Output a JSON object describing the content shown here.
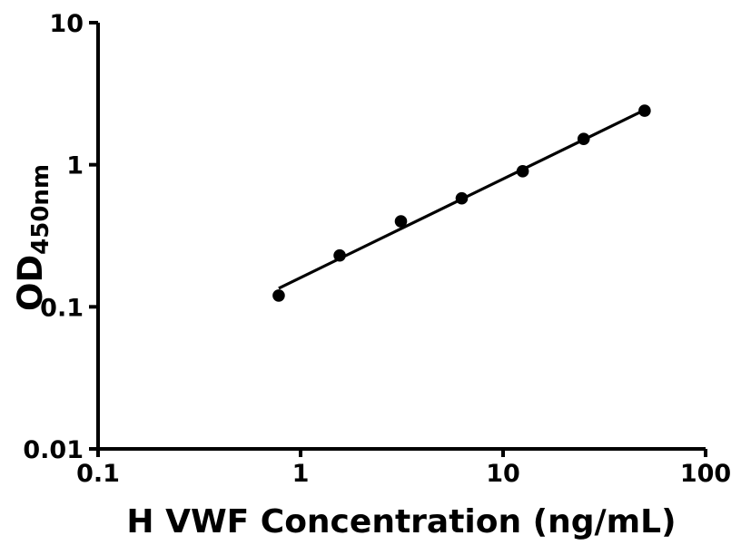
{
  "figure": {
    "background": "#ffffff",
    "foreground": "#000000"
  },
  "chart_data": {
    "type": "scatter",
    "title": "",
    "xlabel": "H VWF Concentration (ng/mL)",
    "ylabel": "OD450nm",
    "ylabel_main": "OD",
    "ylabel_sub": "450nm",
    "x_scale": "log",
    "y_scale": "log",
    "xlim": [
      0.1,
      100
    ],
    "ylim": [
      0.01,
      10
    ],
    "x_ticks": [
      0.1,
      1,
      10,
      100
    ],
    "x_tick_labels": [
      "0.1",
      "1",
      "10",
      "100"
    ],
    "y_ticks": [
      0.01,
      0.1,
      1,
      10
    ],
    "y_tick_labels": [
      "0.01",
      "0.1",
      "1",
      "10"
    ],
    "grid": false,
    "legend": null,
    "axis_color": "#000000",
    "series": [
      {
        "marker": "circle",
        "marker_color": "#000000",
        "points": [
          {
            "x": 0.78,
            "y": 0.12
          },
          {
            "x": 1.56,
            "y": 0.23
          },
          {
            "x": 3.13,
            "y": 0.4
          },
          {
            "x": 6.25,
            "y": 0.58
          },
          {
            "x": 12.5,
            "y": 0.9
          },
          {
            "x": 25,
            "y": 1.52
          },
          {
            "x": 50,
            "y": 2.4
          }
        ]
      }
    ],
    "trend_line": {
      "x1": 0.78,
      "y1": 0.135,
      "x2": 50,
      "y2": 2.43,
      "color": "#000000"
    }
  }
}
